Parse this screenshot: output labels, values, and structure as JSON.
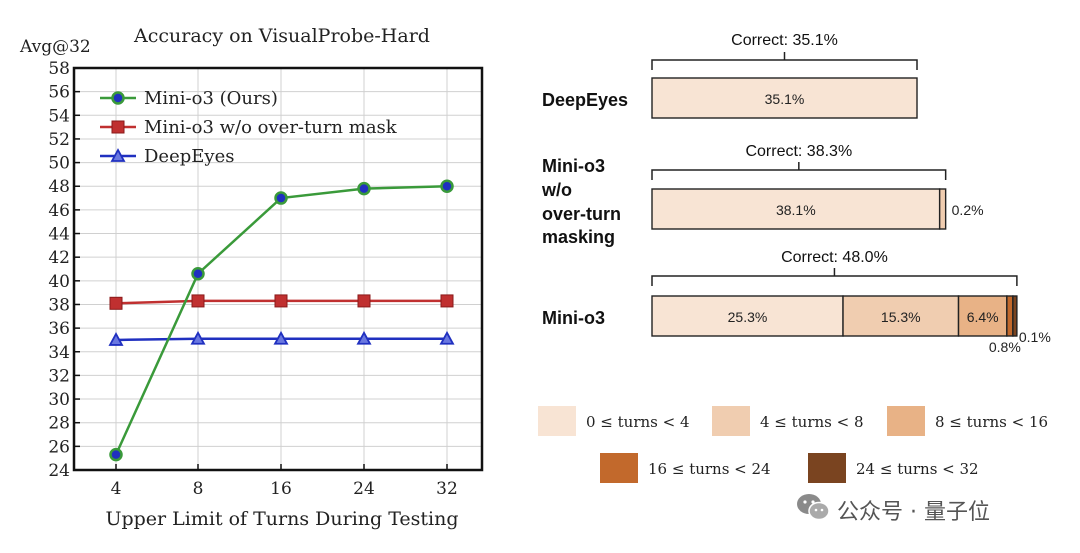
{
  "chart_data": [
    {
      "type": "line",
      "title": "Accuracy on VisualProbe-Hard",
      "ylabel": "Avg@32",
      "xlabel": "Upper Limit of Turns During Testing",
      "categories": [
        "4",
        "8",
        "16",
        "24",
        "32"
      ],
      "ylim": [
        24,
        58
      ],
      "yticks": [
        24,
        26,
        28,
        30,
        32,
        34,
        36,
        38,
        40,
        42,
        44,
        46,
        48,
        50,
        52,
        54,
        56,
        58
      ],
      "grid": true,
      "legend": "top-left",
      "series": [
        {
          "name": "Mini-o3 (Ours)",
          "values": [
            25.3,
            40.6,
            47.0,
            47.8,
            48.0
          ],
          "color": "#3a9a3a",
          "marker": "circle"
        },
        {
          "name": "Mini-o3 w/o over-turn mask",
          "values": [
            38.1,
            38.3,
            38.3,
            38.3,
            38.3
          ],
          "color": "#c03030",
          "marker": "square"
        },
        {
          "name": "DeepEyes",
          "values": [
            35.0,
            35.1,
            35.1,
            35.1,
            35.1
          ],
          "color": "#2030c0",
          "marker": "triangle"
        }
      ]
    },
    {
      "type": "bar",
      "orientation": "horizontal-stacked",
      "categories": [
        "DeepEyes",
        "Mini-o3 w/o over-turn masking",
        "Mini-o3"
      ],
      "category_lines": [
        [
          "DeepEyes"
        ],
        [
          "Mini-o3",
          "w/o",
          "over-turn",
          "masking"
        ],
        [
          "Mini-o3"
        ]
      ],
      "correct_labels": [
        "Correct: 35.1%",
        "Correct: 38.3%",
        "Correct: 48.0%"
      ],
      "series": [
        {
          "name": "0 ≤ turns < 4",
          "values": [
            35.1,
            38.1,
            25.3
          ],
          "color": "#f8e4d4"
        },
        {
          "name": "4 ≤ turns < 8",
          "values": [
            0,
            0.2,
            15.3
          ],
          "color": "#f0cdb0"
        },
        {
          "name": "8 ≤ turns < 16",
          "values": [
            0,
            0,
            6.4
          ],
          "color": "#e8b286"
        },
        {
          "name": "16 ≤ turns < 24",
          "values": [
            0,
            0,
            0.8
          ],
          "color": "#c2692c"
        },
        {
          "name": "24 ≤ turns < 32",
          "values": [
            0,
            0,
            0.1
          ],
          "color": "#7a4420"
        }
      ],
      "bar_labels": [
        [
          "35.1%"
        ],
        [
          "38.1%",
          "0.2%"
        ],
        [
          "25.3%",
          "15.3%",
          "6.4%",
          "0.8%",
          "0.1%"
        ]
      ],
      "legend": "bottom"
    }
  ],
  "watermark": {
    "text": "公众号 · 量子位",
    "icon": "wechat-icon"
  }
}
